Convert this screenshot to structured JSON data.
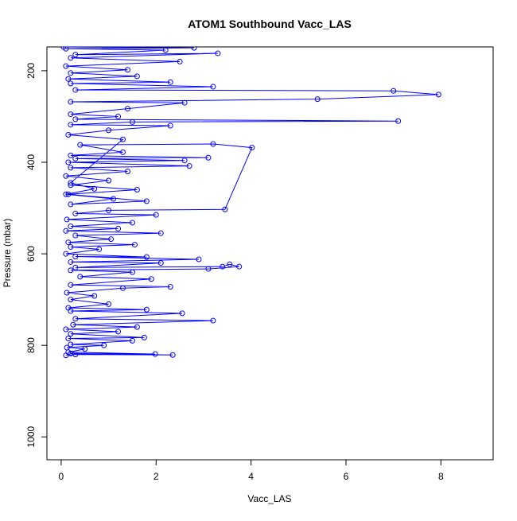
{
  "chart_data": {
    "type": "line",
    "title": "ATOM1 Southbound Vacc_LAS",
    "xlabel": "Vacc_LAS",
    "ylabel": "Pressure (mbar)",
    "xlim": [
      -0.3,
      9.1
    ],
    "ylim": [
      1050,
      148
    ],
    "y_reversed": true,
    "x_ticks": [
      "0",
      "2",
      "4",
      "6",
      "8"
    ],
    "y_ticks": [
      "200",
      "400",
      "600",
      "800",
      "1000"
    ],
    "marker": "open-circle",
    "series": [
      {
        "color": "#0000ff",
        "points": [
          [
            0.1,
            822
          ],
          [
            0.3,
            820
          ],
          [
            2.35,
            821
          ],
          [
            0.2,
            818
          ],
          [
            1.98,
            819
          ],
          [
            0.15,
            815
          ],
          [
            0.5,
            808
          ],
          [
            0.12,
            805
          ],
          [
            0.9,
            800
          ],
          [
            0.2,
            798
          ],
          [
            1.5,
            790
          ],
          [
            0.15,
            785
          ],
          [
            1.75,
            783
          ],
          [
            0.2,
            775
          ],
          [
            1.2,
            770
          ],
          [
            0.1,
            765
          ],
          [
            1.6,
            760
          ],
          [
            0.25,
            755
          ],
          [
            3.2,
            746
          ],
          [
            0.3,
            742
          ],
          [
            2.55,
            730
          ],
          [
            0.2,
            725
          ],
          [
            1.8,
            722
          ],
          [
            0.15,
            718
          ],
          [
            1.0,
            710
          ],
          [
            0.2,
            700
          ],
          [
            0.7,
            692
          ],
          [
            0.12,
            685
          ],
          [
            1.3,
            675
          ],
          [
            2.3,
            672
          ],
          [
            0.2,
            668
          ],
          [
            1.9,
            655
          ],
          [
            0.4,
            650
          ],
          [
            1.5,
            640
          ],
          [
            0.2,
            636
          ],
          [
            3.1,
            633
          ],
          [
            3.75,
            628
          ],
          [
            3.55,
            623
          ],
          [
            3.4,
            628
          ],
          [
            0.3,
            630
          ],
          [
            2.1,
            620
          ],
          [
            0.2,
            618
          ],
          [
            2.9,
            612
          ],
          [
            0.3,
            606
          ],
          [
            1.8,
            607
          ],
          [
            0.1,
            600
          ],
          [
            0.8,
            590
          ],
          [
            0.2,
            585
          ],
          [
            1.55,
            580
          ],
          [
            0.15,
            575
          ],
          [
            1.05,
            568
          ],
          [
            0.3,
            560
          ],
          [
            2.1,
            555
          ],
          [
            0.1,
            550
          ],
          [
            1.2,
            545
          ],
          [
            0.2,
            540
          ],
          [
            1.5,
            532
          ],
          [
            0.12,
            525
          ],
          [
            2.0,
            515
          ],
          [
            0.3,
            512
          ],
          [
            1.0,
            505
          ],
          [
            3.45,
            503
          ],
          [
            4.02,
            368
          ],
          [
            3.2,
            360
          ],
          [
            0.4,
            362
          ],
          [
            1.3,
            378
          ],
          [
            0.2,
            385
          ],
          [
            3.1,
            390
          ],
          [
            0.3,
            392
          ],
          [
            2.6,
            396
          ],
          [
            0.15,
            400
          ],
          [
            2.7,
            408
          ],
          [
            0.2,
            412
          ],
          [
            1.4,
            420
          ],
          [
            0.1,
            430
          ],
          [
            1.0,
            440
          ],
          [
            0.2,
            450
          ],
          [
            1.6,
            460
          ],
          [
            0.15,
            470
          ],
          [
            1.8,
            485
          ],
          [
            0.2,
            492
          ],
          [
            1.1,
            480
          ],
          [
            0.1,
            470
          ],
          [
            0.7,
            458
          ],
          [
            0.2,
            445
          ],
          [
            1.3,
            350
          ],
          [
            0.15,
            340
          ],
          [
            1.0,
            330
          ],
          [
            2.3,
            320
          ],
          [
            0.2,
            318
          ],
          [
            1.5,
            312
          ],
          [
            7.1,
            310
          ],
          [
            0.3,
            306
          ],
          [
            1.2,
            300
          ],
          [
            0.2,
            295
          ],
          [
            1.4,
            283
          ],
          [
            2.6,
            270
          ],
          [
            0.2,
            268
          ],
          [
            5.4,
            262
          ],
          [
            7.95,
            252
          ],
          [
            7.0,
            244
          ],
          [
            0.3,
            242
          ],
          [
            3.2,
            235
          ],
          [
            0.2,
            228
          ],
          [
            2.3,
            225
          ],
          [
            0.15,
            218
          ],
          [
            1.6,
            212
          ],
          [
            0.2,
            205
          ],
          [
            1.4,
            198
          ],
          [
            0.1,
            190
          ],
          [
            2.5,
            180
          ],
          [
            0.2,
            172
          ],
          [
            3.3,
            162
          ],
          [
            0.3,
            165
          ],
          [
            2.2,
            155
          ],
          [
            0.1,
            152
          ],
          [
            2.8,
            150
          ],
          [
            0.05,
            148
          ]
        ]
      }
    ]
  }
}
